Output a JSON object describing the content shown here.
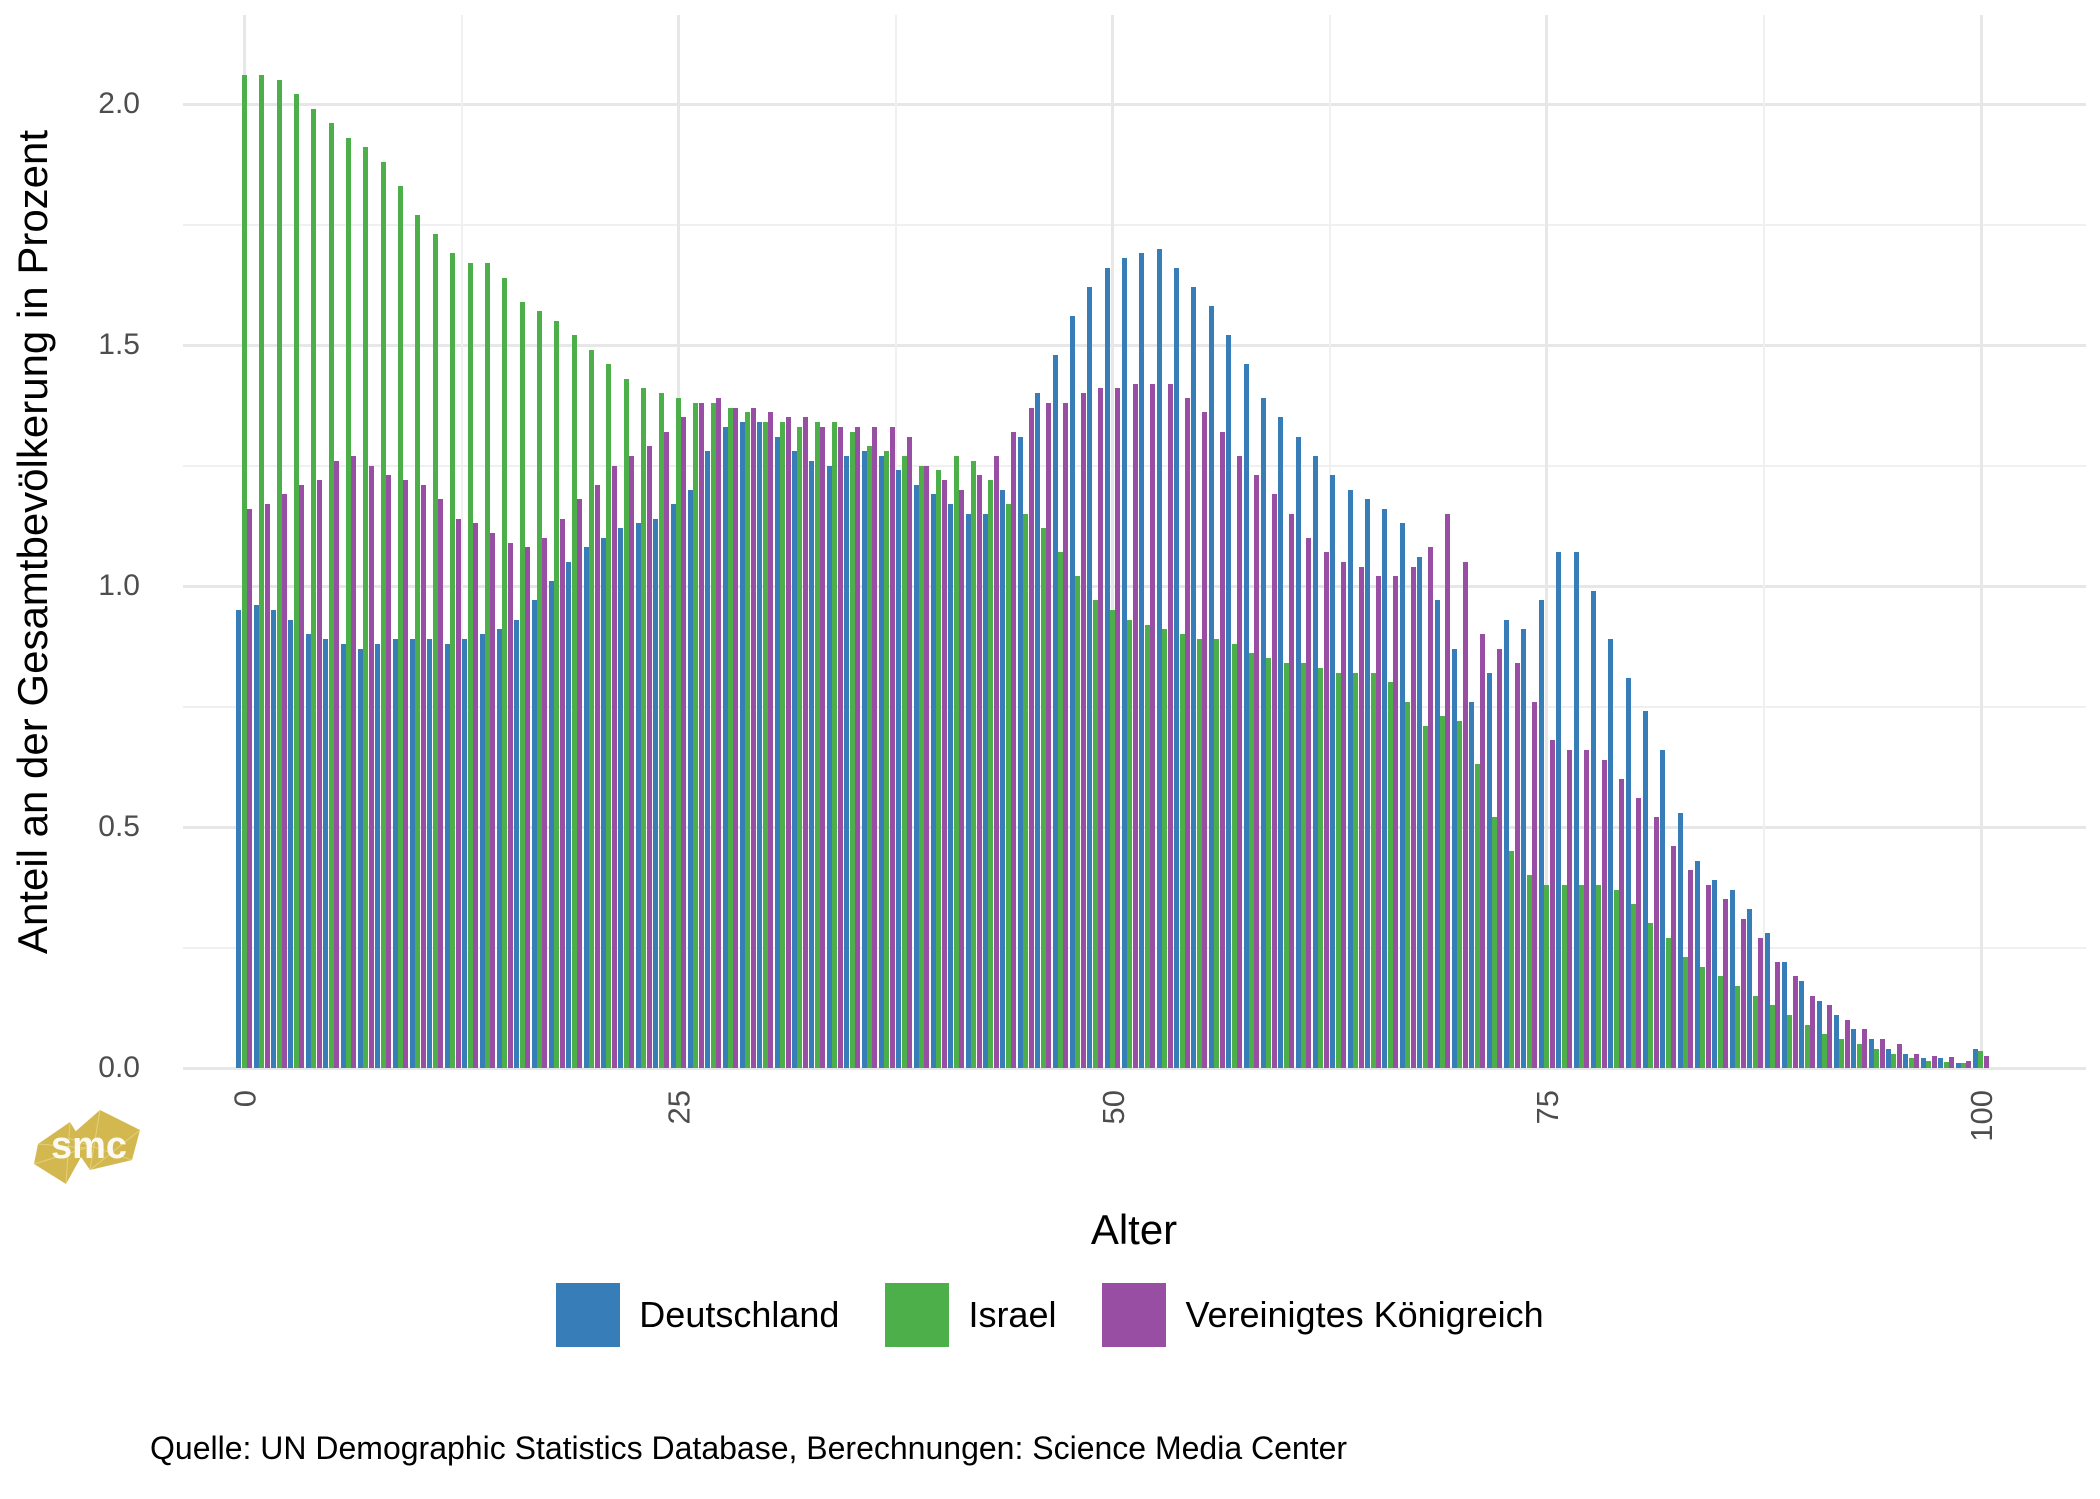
{
  "chart_data": {
    "type": "bar",
    "title": "",
    "xlabel": "Alter",
    "ylabel": "Anteil an der Gesamtbevölkerung in Prozent",
    "x": [
      0,
      1,
      2,
      3,
      4,
      5,
      6,
      7,
      8,
      9,
      10,
      11,
      12,
      13,
      14,
      15,
      16,
      17,
      18,
      19,
      20,
      21,
      22,
      23,
      24,
      25,
      26,
      27,
      28,
      29,
      30,
      31,
      32,
      33,
      34,
      35,
      36,
      37,
      38,
      39,
      40,
      41,
      42,
      43,
      44,
      45,
      46,
      47,
      48,
      49,
      50,
      51,
      52,
      53,
      54,
      55,
      56,
      57,
      58,
      59,
      60,
      61,
      62,
      63,
      64,
      65,
      66,
      67,
      68,
      69,
      70,
      71,
      72,
      73,
      74,
      75,
      76,
      77,
      78,
      79,
      80,
      81,
      82,
      83,
      84,
      85,
      86,
      87,
      88,
      89,
      90,
      91,
      92,
      93,
      94,
      95,
      96,
      97,
      98,
      99,
      100
    ],
    "series": [
      {
        "name": "Deutschland",
        "color": "#377EB8",
        "values": [
          0.95,
          0.96,
          0.95,
          0.93,
          0.9,
          0.89,
          0.88,
          0.87,
          0.88,
          0.89,
          0.89,
          0.89,
          0.88,
          0.89,
          0.9,
          0.91,
          0.93,
          0.97,
          1.01,
          1.05,
          1.08,
          1.1,
          1.12,
          1.13,
          1.14,
          1.17,
          1.2,
          1.28,
          1.33,
          1.34,
          1.34,
          1.31,
          1.28,
          1.26,
          1.25,
          1.27,
          1.28,
          1.27,
          1.24,
          1.21,
          1.19,
          1.17,
          1.15,
          1.15,
          1.2,
          1.31,
          1.4,
          1.48,
          1.56,
          1.62,
          1.66,
          1.68,
          1.69,
          1.7,
          1.66,
          1.62,
          1.58,
          1.52,
          1.46,
          1.39,
          1.35,
          1.31,
          1.27,
          1.23,
          1.2,
          1.18,
          1.16,
          1.13,
          1.06,
          0.97,
          0.87,
          0.76,
          0.82,
          0.93,
          0.91,
          0.97,
          1.07,
          1.07,
          0.99,
          0.89,
          0.81,
          0.74,
          0.66,
          0.53,
          0.43,
          0.39,
          0.37,
          0.33,
          0.28,
          0.22,
          0.18,
          0.14,
          0.11,
          0.08,
          0.06,
          0.04,
          0.03,
          0.02,
          0.02,
          0.01,
          0.04
        ]
      },
      {
        "name": "Israel",
        "color": "#4DAF4A",
        "values": [
          2.06,
          2.06,
          2.05,
          2.02,
          1.99,
          1.96,
          1.93,
          1.91,
          1.88,
          1.83,
          1.77,
          1.73,
          1.69,
          1.67,
          1.67,
          1.64,
          1.59,
          1.57,
          1.55,
          1.52,
          1.49,
          1.46,
          1.43,
          1.41,
          1.4,
          1.39,
          1.38,
          1.38,
          1.37,
          1.36,
          1.34,
          1.34,
          1.33,
          1.34,
          1.34,
          1.32,
          1.29,
          1.28,
          1.27,
          1.25,
          1.24,
          1.27,
          1.26,
          1.22,
          1.17,
          1.15,
          1.12,
          1.07,
          1.02,
          0.97,
          0.95,
          0.93,
          0.92,
          0.91,
          0.9,
          0.89,
          0.89,
          0.88,
          0.86,
          0.85,
          0.84,
          0.84,
          0.83,
          0.82,
          0.82,
          0.82,
          0.8,
          0.76,
          0.71,
          0.73,
          0.72,
          0.63,
          0.52,
          0.45,
          0.4,
          0.38,
          0.38,
          0.38,
          0.38,
          0.37,
          0.34,
          0.3,
          0.27,
          0.23,
          0.21,
          0.19,
          0.17,
          0.15,
          0.13,
          0.11,
          0.09,
          0.07,
          0.06,
          0.05,
          0.04,
          0.03,
          0.02,
          0.015,
          0.013,
          0.01,
          0.035
        ]
      },
      {
        "name": "Vereinigtes Königreich",
        "color": "#984EA3",
        "values": [
          1.16,
          1.17,
          1.19,
          1.21,
          1.22,
          1.26,
          1.27,
          1.25,
          1.23,
          1.22,
          1.21,
          1.18,
          1.14,
          1.13,
          1.11,
          1.09,
          1.08,
          1.1,
          1.14,
          1.18,
          1.21,
          1.25,
          1.27,
          1.29,
          1.32,
          1.35,
          1.38,
          1.39,
          1.37,
          1.37,
          1.36,
          1.35,
          1.35,
          1.33,
          1.33,
          1.33,
          1.33,
          1.33,
          1.31,
          1.25,
          1.22,
          1.2,
          1.23,
          1.27,
          1.32,
          1.37,
          1.38,
          1.38,
          1.4,
          1.41,
          1.41,
          1.42,
          1.42,
          1.42,
          1.39,
          1.36,
          1.32,
          1.27,
          1.23,
          1.19,
          1.15,
          1.1,
          1.07,
          1.05,
          1.04,
          1.02,
          1.02,
          1.04,
          1.08,
          1.15,
          1.05,
          0.9,
          0.87,
          0.84,
          0.76,
          0.68,
          0.66,
          0.66,
          0.64,
          0.6,
          0.56,
          0.52,
          0.46,
          0.41,
          0.38,
          0.35,
          0.31,
          0.27,
          0.22,
          0.19,
          0.15,
          0.13,
          0.1,
          0.08,
          0.06,
          0.05,
          0.03,
          0.025,
          0.023,
          0.015,
          0.025
        ]
      }
    ],
    "ylim": [
      0,
      2.1
    ],
    "yticks": [
      0.0,
      0.5,
      1.0,
      1.5,
      2.0
    ],
    "ytick_labels": [
      "0.0",
      "0.5",
      "1.0",
      "1.5",
      "2.0"
    ],
    "yticks_minor": [
      0.25,
      0.75,
      1.25,
      1.75
    ],
    "xticks": [
      0,
      25,
      50,
      75,
      100
    ],
    "xtick_labels": [
      "0",
      "25",
      "50",
      "75",
      "100"
    ],
    "xticks_minor": [
      12.5,
      37.5,
      62.5,
      87.5
    ],
    "grid": true,
    "legend_position": "bottom",
    "axis_text_color": "#4d4d4d"
  },
  "source_note": "Quelle: UN Demographic Statistics Database, Berechnungen: Science Media Center",
  "logo": {
    "text": "smc",
    "color": "#d2b84f"
  }
}
